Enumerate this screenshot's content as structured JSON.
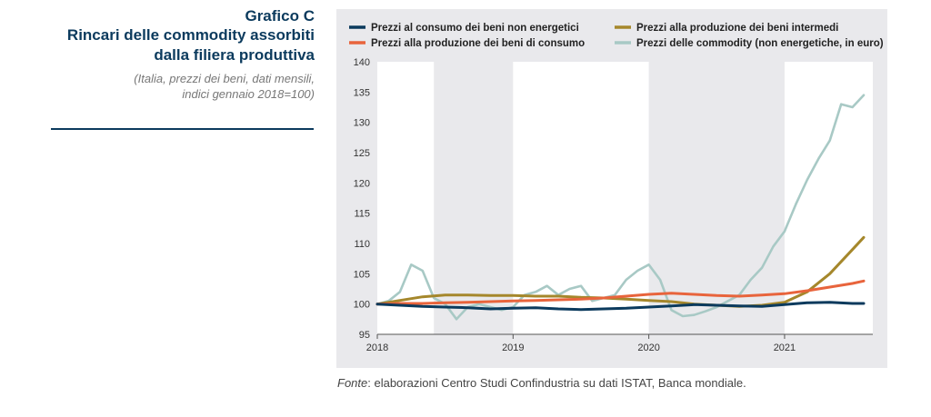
{
  "side": {
    "kicker": "Grafico C",
    "title_line1": "Rincari delle commodity assorbiti",
    "title_line2": "dalla filiera produttiva",
    "subtitle_line1": "(Italia, prezzi dei beni, dati mensili,",
    "subtitle_line2": "indici gennaio 2018=100)"
  },
  "source": {
    "label": "Fonte",
    "text": ": elaborazioni Centro Studi Confindustria su dati ISTAT, Banca mondiale."
  },
  "chart_data": {
    "type": "line",
    "ylim": [
      95,
      140
    ],
    "yticks": [
      95,
      100,
      105,
      110,
      115,
      120,
      125,
      130,
      135,
      140
    ],
    "xlim": [
      "2018-01",
      "2021-08"
    ],
    "xticks": [
      "2018",
      "2019",
      "2020",
      "2021"
    ],
    "shaded_periods": [
      [
        "2018-06",
        "2019-01"
      ],
      [
        "2020-01",
        "2021-01"
      ]
    ],
    "grid": false,
    "legend_position": "top",
    "series": [
      {
        "name": "Prezzi al consumo dei beni non energetici",
        "color": "#0b3a5d",
        "x": [
          "2018-01",
          "2018-03",
          "2018-05",
          "2018-07",
          "2018-09",
          "2018-11",
          "2019-01",
          "2019-03",
          "2019-05",
          "2019-07",
          "2019-09",
          "2019-11",
          "2020-01",
          "2020-03",
          "2020-05",
          "2020-07",
          "2020-09",
          "2020-11",
          "2021-01",
          "2021-03",
          "2021-05",
          "2021-07",
          "2021-08"
        ],
        "values": [
          100,
          99.8,
          99.6,
          99.5,
          99.4,
          99.2,
          99.3,
          99.4,
          99.2,
          99.1,
          99.2,
          99.3,
          99.5,
          99.7,
          99.9,
          99.8,
          99.7,
          99.6,
          99.9,
          100.2,
          100.3,
          100.1,
          100.1
        ]
      },
      {
        "name": "Prezzi alla produzione dei beni di consumo",
        "color": "#e8643c",
        "x": [
          "2018-01",
          "2018-03",
          "2018-05",
          "2018-07",
          "2018-09",
          "2018-11",
          "2019-01",
          "2019-03",
          "2019-05",
          "2019-07",
          "2019-09",
          "2019-11",
          "2020-01",
          "2020-03",
          "2020-05",
          "2020-07",
          "2020-09",
          "2020-11",
          "2021-01",
          "2021-03",
          "2021-05",
          "2021-07",
          "2021-08"
        ],
        "values": [
          100,
          100.1,
          100.1,
          100.2,
          100.3,
          100.4,
          100.5,
          100.6,
          100.7,
          100.8,
          101.0,
          101.3,
          101.6,
          101.8,
          101.6,
          101.4,
          101.3,
          101.5,
          101.7,
          102.2,
          102.8,
          103.4,
          103.8
        ]
      },
      {
        "name": "Prezzi alla produzione dei beni intermedi",
        "color": "#a5872b",
        "x": [
          "2018-01",
          "2018-03",
          "2018-05",
          "2018-07",
          "2018-09",
          "2018-11",
          "2019-01",
          "2019-03",
          "2019-05",
          "2019-07",
          "2019-09",
          "2019-11",
          "2020-01",
          "2020-03",
          "2020-05",
          "2020-07",
          "2020-09",
          "2020-11",
          "2021-01",
          "2021-03",
          "2021-05",
          "2021-07",
          "2021-08"
        ],
        "values": [
          100,
          100.6,
          101.2,
          101.5,
          101.5,
          101.4,
          101.4,
          101.3,
          101.3,
          101.1,
          101.0,
          100.8,
          100.6,
          100.4,
          100.0,
          99.8,
          99.6,
          99.8,
          100.3,
          102.0,
          105.0,
          109.0,
          111.0
        ]
      },
      {
        "name": "Prezzi delle commodity (non energetiche, in euro)",
        "color": "#a8c9c5",
        "x": [
          "2018-01",
          "2018-02",
          "2018-03",
          "2018-04",
          "2018-05",
          "2018-06",
          "2018-07",
          "2018-08",
          "2018-09",
          "2018-10",
          "2018-11",
          "2018-12",
          "2019-01",
          "2019-02",
          "2019-03",
          "2019-04",
          "2019-05",
          "2019-06",
          "2019-07",
          "2019-08",
          "2019-09",
          "2019-10",
          "2019-11",
          "2019-12",
          "2020-01",
          "2020-02",
          "2020-03",
          "2020-04",
          "2020-05",
          "2020-06",
          "2020-07",
          "2020-08",
          "2020-09",
          "2020-10",
          "2020-11",
          "2020-12",
          "2021-01",
          "2021-02",
          "2021-03",
          "2021-04",
          "2021-05",
          "2021-06",
          "2021-07",
          "2021-08"
        ],
        "values": [
          100,
          100.5,
          102.0,
          106.5,
          105.5,
          101.0,
          100.0,
          97.5,
          99.5,
          100.0,
          99.5,
          99.0,
          99.5,
          101.5,
          102.0,
          103.0,
          101.5,
          102.5,
          103.0,
          100.5,
          101.0,
          101.5,
          104.0,
          105.5,
          106.5,
          104.0,
          99.0,
          98.0,
          98.2,
          98.8,
          99.5,
          100.5,
          101.5,
          104.0,
          106.0,
          109.5,
          112.0,
          116.5,
          120.5,
          124.0,
          127.0,
          133.0,
          132.5,
          134.5
        ]
      }
    ]
  }
}
